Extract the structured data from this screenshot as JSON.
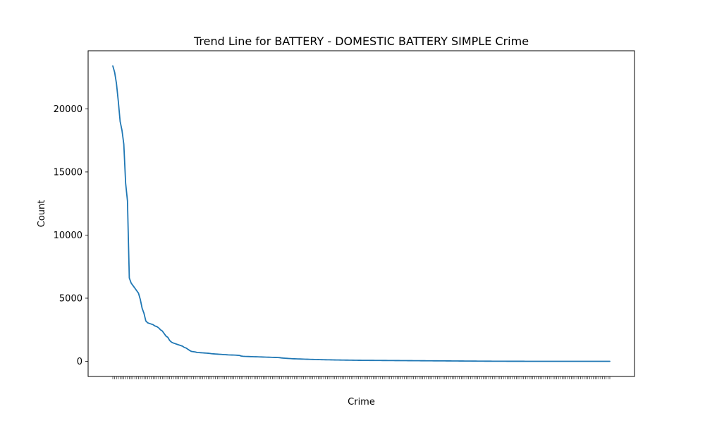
{
  "chart_data": {
    "type": "line",
    "title": "Trend Line for BATTERY - DOMESTIC BATTERY SIMPLE Crime",
    "xlabel": "Crime",
    "ylabel": "Count",
    "ylim": [
      -1200,
      24600
    ],
    "yticks": [
      0,
      5000,
      10000,
      15000,
      20000
    ],
    "grid": false,
    "legend": "none",
    "series": [
      {
        "color": "#1f77b4",
        "values": [
          23400,
          22900,
          22000,
          20600,
          19000,
          18300,
          17200,
          14100,
          12700,
          6600,
          6200,
          6000,
          5800,
          5600,
          5400,
          4900,
          4200,
          3800,
          3200,
          3050,
          3000,
          2950,
          2900,
          2800,
          2750,
          2650,
          2500,
          2400,
          2200,
          2000,
          1900,
          1650,
          1520,
          1450,
          1400,
          1350,
          1300,
          1250,
          1200,
          1100,
          1050,
          950,
          850,
          780,
          760,
          740,
          700,
          690,
          680,
          670,
          660,
          650,
          640,
          620,
          600,
          590,
          580,
          570,
          560,
          550,
          540,
          530,
          520,
          510,
          505,
          500,
          495,
          490,
          480,
          470,
          420,
          400,
          390,
          385,
          380,
          375,
          370,
          365,
          360,
          355,
          350,
          345,
          340,
          335,
          330,
          325,
          320,
          315,
          310,
          305,
          300,
          290,
          270,
          255,
          245,
          235,
          225,
          215,
          205,
          200,
          195,
          190,
          185,
          180,
          175,
          170,
          165,
          160,
          155,
          150,
          146,
          142,
          138,
          134,
          130,
          127,
          124,
          121,
          118,
          115,
          112,
          109,
          106,
          104,
          102,
          100,
          98,
          96,
          94,
          92,
          90,
          88,
          86,
          84,
          82,
          80,
          79,
          78,
          77,
          76,
          75,
          74,
          73,
          72,
          71,
          70,
          69,
          68,
          67,
          66,
          65,
          64,
          63,
          62,
          61,
          60,
          59,
          58,
          57,
          56,
          55,
          54,
          53,
          52,
          51,
          50,
          49,
          48,
          47,
          46,
          45,
          44,
          43,
          42,
          41,
          40,
          39,
          38,
          37,
          36,
          35,
          34,
          33,
          32,
          31,
          30,
          29,
          28,
          27,
          26,
          25,
          24,
          23,
          22,
          21,
          20,
          19,
          18,
          17,
          16,
          15,
          14,
          13,
          12,
          11,
          10,
          10,
          9,
          9,
          8,
          8,
          7,
          7,
          6,
          6,
          5,
          5,
          5,
          4,
          4,
          4,
          3,
          3,
          3,
          3,
          2,
          2,
          2,
          2,
          2,
          2,
          1,
          1,
          1,
          1,
          1,
          1,
          1,
          1,
          1,
          1,
          1,
          1,
          1,
          1,
          1,
          1,
          1,
          1,
          1,
          1,
          1,
          1,
          1,
          1,
          1,
          1,
          1,
          1,
          1,
          1,
          1,
          1,
          1,
          1,
          1,
          1,
          1,
          1,
          1,
          1,
          1
        ]
      }
    ]
  }
}
